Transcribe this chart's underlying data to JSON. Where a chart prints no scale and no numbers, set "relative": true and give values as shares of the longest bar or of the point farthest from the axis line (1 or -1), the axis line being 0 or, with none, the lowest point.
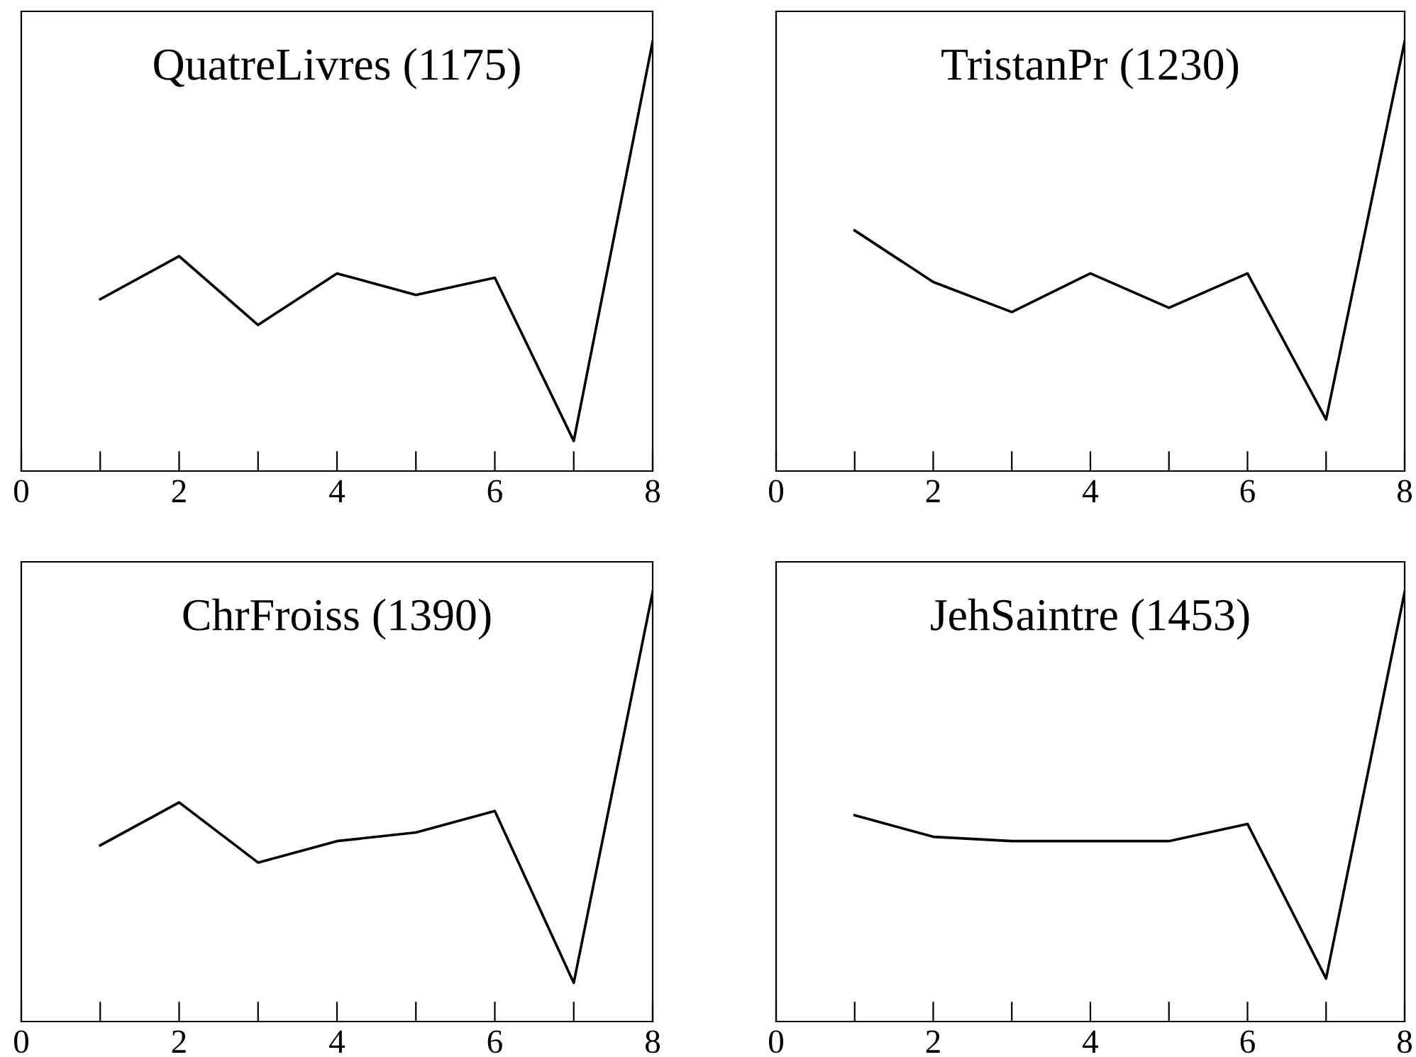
{
  "chart_data": [
    {
      "type": "line",
      "title": "QuatreLivres (1175)",
      "relative": true,
      "tick_labels": "x",
      "xlim": [
        0,
        8
      ],
      "xticks": [
        0,
        {
          "value": 1,
          "label": null
        },
        2,
        {
          "value": 3,
          "label": null
        },
        4,
        {
          "value": 5,
          "label": null
        },
        6,
        {
          "value": 7,
          "label": null
        },
        8
      ],
      "x": [
        1,
        2,
        3,
        4,
        5,
        6,
        7,
        8
      ],
      "series": [
        {
          "color": "#000000",
          "values": [
            0.4,
            0.5,
            0.34,
            0.46,
            0.41,
            0.45,
            0.07,
            1
          ]
        }
      ]
    },
    {
      "type": "line",
      "title": "TristanPr (1230)",
      "relative": true,
      "tick_labels": "x",
      "xlim": [
        0,
        8
      ],
      "xticks": [
        0,
        {
          "value": 1,
          "label": null
        },
        2,
        {
          "value": 3,
          "label": null
        },
        4,
        {
          "value": 5,
          "label": null
        },
        6,
        {
          "value": 7,
          "label": null
        },
        8
      ],
      "x": [
        1,
        2,
        3,
        4,
        5,
        6,
        7,
        8
      ],
      "series": [
        {
          "color": "#000000",
          "values": [
            0.56,
            0.44,
            0.37,
            0.46,
            0.38,
            0.46,
            0.12,
            1
          ]
        }
      ]
    },
    {
      "type": "line",
      "title": "ChrFroiss (1390)",
      "relative": true,
      "tick_labels": "x",
      "xlim": [
        0,
        8
      ],
      "xticks": [
        0,
        {
          "value": 1,
          "label": null
        },
        2,
        {
          "value": 3,
          "label": null
        },
        4,
        {
          "value": 5,
          "label": null
        },
        6,
        {
          "value": 7,
          "label": null
        },
        8
      ],
      "x": [
        1,
        2,
        3,
        4,
        5,
        6,
        7,
        8
      ],
      "series": [
        {
          "color": "#000000",
          "values": [
            0.41,
            0.51,
            0.37,
            0.42,
            0.44,
            0.49,
            0.09,
            1
          ]
        }
      ]
    },
    {
      "type": "line",
      "title": "JehSaintre (1453)",
      "relative": true,
      "tick_labels": "x",
      "xlim": [
        0,
        8
      ],
      "xticks": [
        0,
        {
          "value": 1,
          "label": null
        },
        2,
        {
          "value": 3,
          "label": null
        },
        4,
        {
          "value": 5,
          "label": null
        },
        6,
        {
          "value": 7,
          "label": null
        },
        8
      ],
      "x": [
        1,
        2,
        3,
        4,
        5,
        6,
        7,
        8
      ],
      "series": [
        {
          "color": "#000000",
          "values": [
            0.48,
            0.43,
            0.42,
            0.42,
            0.42,
            0.46,
            0.1,
            1
          ]
        }
      ]
    }
  ]
}
